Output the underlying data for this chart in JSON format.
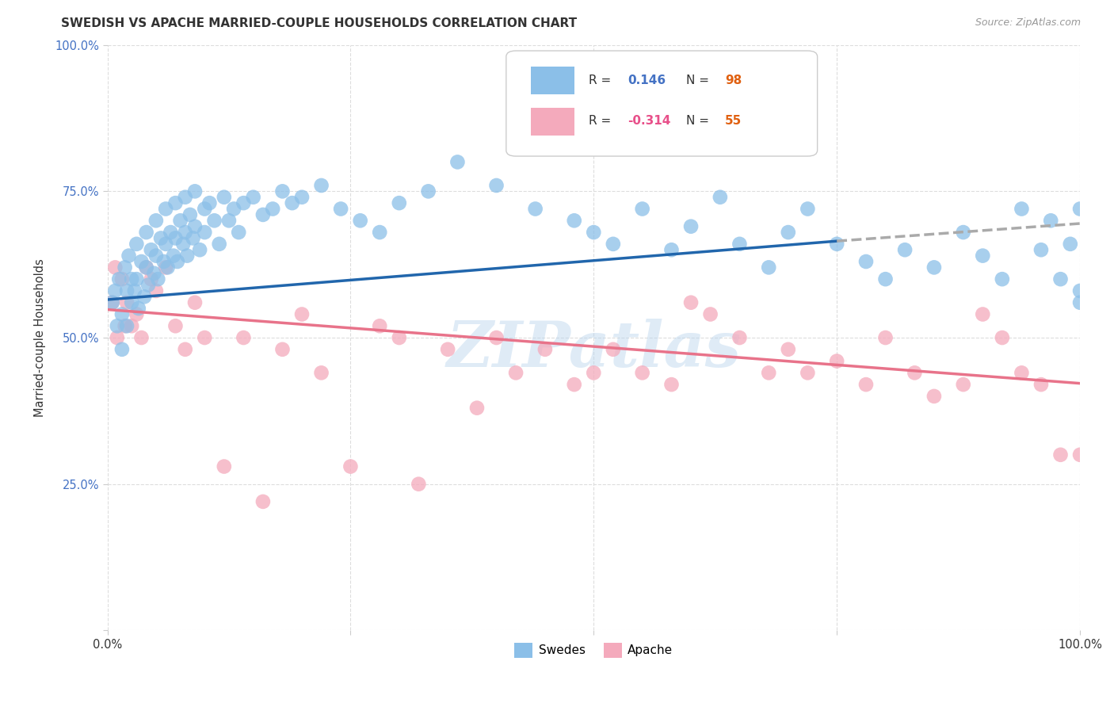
{
  "title": "SWEDISH VS APACHE MARRIED-COUPLE HOUSEHOLDS CORRELATION CHART",
  "source": "Source: ZipAtlas.com",
  "ylabel": "Married-couple Households",
  "xlim": [
    0,
    1
  ],
  "ylim": [
    0,
    1
  ],
  "blue_color": "#8BBFE8",
  "pink_color": "#F4AABC",
  "blue_line_color": "#2166ac",
  "pink_line_color": "#e8738a",
  "dashed_line_color": "#aaaaaa",
  "R_blue": 0.146,
  "N_blue": 98,
  "R_pink": -0.314,
  "N_pink": 55,
  "legend_label_blue": "Swedes",
  "legend_label_pink": "Apache",
  "watermark": "ZIPatlas",
  "background_color": "#ffffff",
  "grid_color": "#dddddd",
  "blue_x": [
    0.005,
    0.008,
    0.01,
    0.012,
    0.015,
    0.015,
    0.018,
    0.02,
    0.02,
    0.022,
    0.025,
    0.025,
    0.028,
    0.03,
    0.03,
    0.032,
    0.035,
    0.038,
    0.04,
    0.04,
    0.042,
    0.045,
    0.048,
    0.05,
    0.05,
    0.052,
    0.055,
    0.058,
    0.06,
    0.06,
    0.062,
    0.065,
    0.068,
    0.07,
    0.07,
    0.072,
    0.075,
    0.078,
    0.08,
    0.08,
    0.082,
    0.085,
    0.088,
    0.09,
    0.09,
    0.095,
    0.1,
    0.1,
    0.105,
    0.11,
    0.115,
    0.12,
    0.125,
    0.13,
    0.135,
    0.14,
    0.15,
    0.16,
    0.17,
    0.18,
    0.19,
    0.2,
    0.22,
    0.24,
    0.26,
    0.28,
    0.3,
    0.33,
    0.36,
    0.4,
    0.44,
    0.48,
    0.5,
    0.52,
    0.55,
    0.58,
    0.6,
    0.63,
    0.65,
    0.68,
    0.7,
    0.72,
    0.75,
    0.78,
    0.8,
    0.82,
    0.85,
    0.88,
    0.9,
    0.92,
    0.94,
    0.96,
    0.97,
    0.98,
    0.99,
    1.0,
    1.0,
    1.0
  ],
  "blue_y": [
    0.56,
    0.58,
    0.52,
    0.6,
    0.54,
    0.48,
    0.62,
    0.58,
    0.52,
    0.64,
    0.6,
    0.56,
    0.58,
    0.66,
    0.6,
    0.55,
    0.63,
    0.57,
    0.68,
    0.62,
    0.59,
    0.65,
    0.61,
    0.7,
    0.64,
    0.6,
    0.67,
    0.63,
    0.72,
    0.66,
    0.62,
    0.68,
    0.64,
    0.73,
    0.67,
    0.63,
    0.7,
    0.66,
    0.74,
    0.68,
    0.64,
    0.71,
    0.67,
    0.75,
    0.69,
    0.65,
    0.72,
    0.68,
    0.73,
    0.7,
    0.66,
    0.74,
    0.7,
    0.72,
    0.68,
    0.73,
    0.74,
    0.71,
    0.72,
    0.75,
    0.73,
    0.74,
    0.76,
    0.72,
    0.7,
    0.68,
    0.73,
    0.75,
    0.8,
    0.76,
    0.72,
    0.7,
    0.68,
    0.66,
    0.72,
    0.65,
    0.69,
    0.74,
    0.66,
    0.62,
    0.68,
    0.72,
    0.66,
    0.63,
    0.6,
    0.65,
    0.62,
    0.68,
    0.64,
    0.6,
    0.72,
    0.65,
    0.7,
    0.6,
    0.66,
    0.72,
    0.58,
    0.56
  ],
  "pink_x": [
    0.005,
    0.008,
    0.01,
    0.015,
    0.018,
    0.02,
    0.025,
    0.03,
    0.035,
    0.04,
    0.045,
    0.05,
    0.06,
    0.07,
    0.08,
    0.09,
    0.1,
    0.12,
    0.14,
    0.16,
    0.18,
    0.2,
    0.22,
    0.25,
    0.28,
    0.3,
    0.32,
    0.35,
    0.38,
    0.4,
    0.42,
    0.45,
    0.48,
    0.5,
    0.52,
    0.55,
    0.58,
    0.6,
    0.62,
    0.65,
    0.68,
    0.7,
    0.72,
    0.75,
    0.78,
    0.8,
    0.83,
    0.85,
    0.88,
    0.9,
    0.92,
    0.94,
    0.96,
    0.98,
    1.0
  ],
  "pink_y": [
    0.56,
    0.62,
    0.5,
    0.6,
    0.52,
    0.56,
    0.52,
    0.54,
    0.5,
    0.62,
    0.6,
    0.58,
    0.62,
    0.52,
    0.48,
    0.56,
    0.5,
    0.28,
    0.5,
    0.22,
    0.48,
    0.54,
    0.44,
    0.28,
    0.52,
    0.5,
    0.25,
    0.48,
    0.38,
    0.5,
    0.44,
    0.48,
    0.42,
    0.44,
    0.48,
    0.44,
    0.42,
    0.56,
    0.54,
    0.5,
    0.44,
    0.48,
    0.44,
    0.46,
    0.42,
    0.5,
    0.44,
    0.4,
    0.42,
    0.54,
    0.5,
    0.44,
    0.42,
    0.3,
    0.3
  ]
}
